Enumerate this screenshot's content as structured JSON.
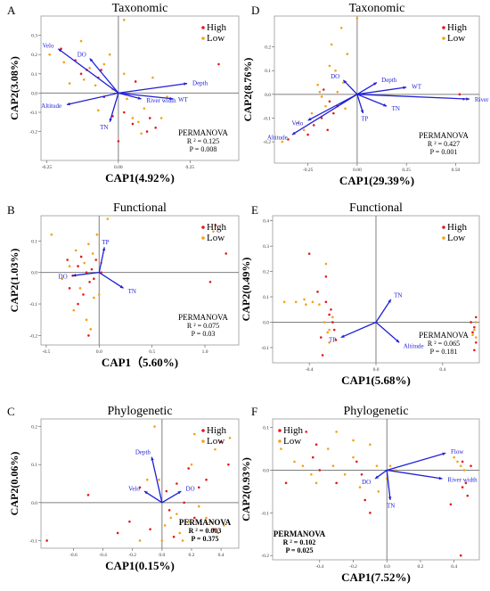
{
  "colors": {
    "high": "#e41a1c",
    "low": "#f5a01a",
    "arrow": "#1f1fd6",
    "axis": "#7f7f7f"
  },
  "chart_data": [
    {
      "panel": "A",
      "type": "scatter",
      "title": "Taxonomic",
      "xlabel": "CAP1(4.92%)",
      "ylabel": "CAP2(3.08%)",
      "xlim": [
        -0.27,
        0.42
      ],
      "ylim": [
        -0.35,
        0.4
      ],
      "xticks": [
        "-0.25",
        "0.00",
        "0.25"
      ],
      "xtick_values": [
        -0.25,
        0,
        0.25
      ],
      "yticks": [
        "-0.2",
        "-0.1",
        "0.0",
        "0.1",
        "0.2",
        "0.3"
      ],
      "ytick_values": [
        -0.2,
        -0.1,
        0,
        0.1,
        0.2,
        0.3
      ],
      "legend": [
        "High",
        "Low"
      ],
      "legend_position": "top-right",
      "stats": [
        "PERMANOVA",
        "R ² = 0.125",
        "P = 0.008"
      ],
      "arrows": [
        {
          "label": "Velo",
          "x": -0.21,
          "y": 0.23
        },
        {
          "label": "DO",
          "x": -0.1,
          "y": 0.18
        },
        {
          "label": "Depth",
          "x": 0.24,
          "y": 0.05
        },
        {
          "label": "WT",
          "x": 0.19,
          "y": -0.03
        },
        {
          "label": "River width",
          "x": 0.08,
          "y": -0.03
        },
        {
          "label": "Altitude",
          "x": -0.18,
          "y": -0.06
        },
        {
          "label": "TN",
          "x": -0.03,
          "y": -0.15
        }
      ],
      "points_high": [
        [
          -0.2,
          0.23
        ],
        [
          -0.15,
          0.17
        ],
        [
          -0.13,
          0.1
        ],
        [
          -0.11,
          0.12
        ],
        [
          -0.07,
          0.08
        ],
        [
          -0.06,
          0.12
        ],
        [
          -0.05,
          -0.02
        ],
        [
          -0.02,
          -0.12
        ],
        [
          0.02,
          -0.1
        ],
        [
          0.05,
          -0.16
        ],
        [
          0.1,
          -0.2
        ],
        [
          0.13,
          -0.18
        ],
        [
          0.11,
          -0.13
        ],
        [
          0.06,
          0.06
        ],
        [
          0.0,
          -0.25
        ],
        [
          0.35,
          0.15
        ]
      ],
      "points_low": [
        [
          -0.24,
          0.2
        ],
        [
          -0.19,
          0.16
        ],
        [
          -0.17,
          0.05
        ],
        [
          -0.12,
          0.07
        ],
        [
          -0.1,
          0.13
        ],
        [
          -0.08,
          0.04
        ],
        [
          -0.07,
          -0.09
        ],
        [
          -0.05,
          0.15
        ],
        [
          -0.02,
          0.02
        ],
        [
          0.02,
          0.1
        ],
        [
          0.03,
          -0.03
        ],
        [
          0.05,
          -0.13
        ],
        [
          0.08,
          -0.21
        ],
        [
          0.07,
          -0.15
        ],
        [
          0.12,
          0.08
        ],
        [
          0.15,
          -0.13
        ],
        [
          0.17,
          -0.02
        ],
        [
          0.02,
          0.38
        ],
        [
          -0.13,
          0.27
        ],
        [
          -0.03,
          0.2
        ],
        [
          0.09,
          -0.08
        ]
      ]
    },
    {
      "panel": "D",
      "type": "scatter",
      "title": "Taxonomic",
      "xlabel": "CAP1(29.39%)",
      "ylabel": "CAP2(8.76%)",
      "xlim": [
        -0.42,
        0.62
      ],
      "ylim": [
        -0.29,
        0.33
      ],
      "xticks": [
        "-0.25",
        "0.00",
        "0.25",
        "0.50"
      ],
      "xtick_values": [
        -0.25,
        0,
        0.25,
        0.5
      ],
      "yticks": [
        "-0.2",
        "-0.1",
        "0.0",
        "0.1",
        "0.2"
      ],
      "ytick_values": [
        -0.2,
        -0.1,
        0,
        0.1,
        0.2
      ],
      "legend": [
        "High",
        "Low"
      ],
      "legend_position": "top-right",
      "stats": [
        "PERMANOVA",
        "R ² = 0.427",
        "P = 0.001"
      ],
      "arrows": [
        {
          "label": "DO",
          "x": -0.07,
          "y": 0.06
        },
        {
          "label": "Depth",
          "x": 0.1,
          "y": 0.05
        },
        {
          "label": "WT",
          "x": 0.25,
          "y": 0.03
        },
        {
          "label": "River width",
          "x": 0.57,
          "y": -0.02
        },
        {
          "label": "TN",
          "x": 0.15,
          "y": -0.05
        },
        {
          "label": "TP",
          "x": 0.03,
          "y": -0.08
        },
        {
          "label": "Velo",
          "x": -0.25,
          "y": -0.11
        },
        {
          "label": "Altitude",
          "x": -0.33,
          "y": -0.17
        }
      ],
      "points_high": [
        [
          -0.35,
          -0.19
        ],
        [
          -0.25,
          -0.17
        ],
        [
          -0.22,
          -0.13
        ],
        [
          -0.18,
          -0.1
        ],
        [
          -0.15,
          -0.15
        ],
        [
          -0.12,
          -0.08
        ],
        [
          -0.1,
          -0.05
        ],
        [
          -0.17,
          0.02
        ],
        [
          -0.14,
          -0.03
        ],
        [
          0.52,
          0.0
        ],
        [
          0.54,
          -0.02
        ]
      ],
      "points_low": [
        [
          -0.38,
          -0.2
        ],
        [
          -0.3,
          -0.12
        ],
        [
          -0.27,
          -0.15
        ],
        [
          -0.23,
          -0.08
        ],
        [
          -0.2,
          0.04
        ],
        [
          -0.19,
          0.01
        ],
        [
          -0.16,
          -0.05
        ],
        [
          -0.11,
          0.1
        ],
        [
          -0.1,
          0.01
        ],
        [
          -0.07,
          0.05
        ],
        [
          -0.06,
          -0.06
        ],
        [
          -0.05,
          0.17
        ],
        [
          -0.14,
          0.12
        ],
        [
          -0.13,
          0.21
        ],
        [
          -0.08,
          0.28
        ],
        [
          0.0,
          0.32
        ],
        [
          -0.18,
          -0.01
        ]
      ]
    },
    {
      "panel": "B",
      "type": "scatter",
      "title": "Functional",
      "xlabel": "CAP1（5.60%)",
      "ylabel": "CAP2(1.03%)",
      "xlim": [
        -0.55,
        1.32
      ],
      "ylim": [
        -0.23,
        0.18
      ],
      "xticks": [
        "-0.5",
        "0.0",
        "0.5",
        "1.0"
      ],
      "xtick_values": [
        -0.5,
        0,
        0.5,
        1.0
      ],
      "yticks": [
        "-0.2",
        "-0.1",
        "0.0",
        "0.1"
      ],
      "ytick_values": [
        -0.2,
        -0.1,
        0,
        0.1
      ],
      "legend": [
        "High",
        "Low"
      ],
      "legend_position": "top-right",
      "stats": [
        "PERMANOVA",
        "R ² = 0.075",
        "P = 0.03"
      ],
      "arrows": [
        {
          "label": "TP",
          "x": 0.05,
          "y": 0.08
        },
        {
          "label": "DO",
          "x": -0.25,
          "y": -0.01
        },
        {
          "label": "TN",
          "x": 0.23,
          "y": -0.05
        }
      ],
      "points_high": [
        [
          -0.3,
          0.04
        ],
        [
          -0.25,
          -0.01
        ],
        [
          -0.2,
          0.02
        ],
        [
          -0.17,
          0.05
        ],
        [
          -0.12,
          0.0
        ],
        [
          -0.09,
          -0.03
        ],
        [
          -0.07,
          0.01
        ],
        [
          -0.05,
          -0.02
        ],
        [
          -0.15,
          -0.07
        ],
        [
          -0.2,
          -0.1
        ],
        [
          -0.1,
          -0.2
        ],
        [
          0.02,
          0.0
        ],
        [
          -0.03,
          0.04
        ],
        [
          1.1,
          0.15
        ],
        [
          1.05,
          -0.03
        ],
        [
          1.2,
          0.06
        ],
        [
          -0.28,
          -0.05
        ]
      ],
      "points_low": [
        [
          -0.45,
          0.12
        ],
        [
          -0.35,
          -0.02
        ],
        [
          -0.28,
          0.02
        ],
        [
          -0.22,
          0.07
        ],
        [
          -0.18,
          -0.05
        ],
        [
          -0.14,
          0.03
        ],
        [
          -0.1,
          0.09
        ],
        [
          -0.06,
          0.06
        ],
        [
          -0.05,
          -0.08
        ],
        [
          -0.02,
          0.12
        ],
        [
          0.02,
          0.03
        ],
        [
          -0.12,
          -0.15
        ],
        [
          -0.08,
          -0.18
        ],
        [
          0.0,
          -0.07
        ],
        [
          0.08,
          0.17
        ],
        [
          -0.24,
          -0.12
        ],
        [
          1.08,
          0.13
        ]
      ]
    },
    {
      "panel": "E",
      "type": "scatter",
      "title": "Functional",
      "xlabel": "CAP1(5.68%)",
      "ylabel": "CAP2(0.49%)",
      "xlim": [
        -0.62,
        0.62
      ],
      "ylim": [
        -0.16,
        0.42
      ],
      "xticks": [
        "-0.4",
        "0.0",
        "0.4"
      ],
      "xtick_values": [
        -0.4,
        0,
        0.4
      ],
      "yticks": [
        "-0.1",
        "0.0",
        "0.1",
        "0.2",
        "0.3",
        "0.4"
      ],
      "ytick_values": [
        -0.1,
        0,
        0.1,
        0.2,
        0.3,
        0.4
      ],
      "legend": [
        "High",
        "Low"
      ],
      "legend_position": "top-right",
      "stats": [
        "PERMANOVA",
        "R ² = 0.065",
        "P = 0.181"
      ],
      "arrows": [
        {
          "label": "TN",
          "x": 0.09,
          "y": 0.09
        },
        {
          "label": "TP",
          "x": -0.21,
          "y": -0.06
        },
        {
          "label": "Altitude",
          "x": 0.14,
          "y": -0.08
        }
      ],
      "points_high": [
        [
          -0.4,
          0.27
        ],
        [
          -0.35,
          0.12
        ],
        [
          -0.3,
          0.08
        ],
        [
          -0.28,
          0.03
        ],
        [
          -0.26,
          0.0
        ],
        [
          -0.27,
          0.05
        ],
        [
          -0.33,
          -0.06
        ],
        [
          -0.32,
          -0.13
        ],
        [
          -0.24,
          -0.07
        ],
        [
          0.57,
          0.0
        ],
        [
          0.59,
          -0.02
        ],
        [
          0.58,
          -0.04
        ],
        [
          0.6,
          -0.08
        ],
        [
          0.59,
          -0.11
        ],
        [
          0.6,
          0.02
        ],
        [
          -0.25,
          -0.03
        ],
        [
          -0.3,
          0.18
        ]
      ],
      "points_low": [
        [
          -0.55,
          0.08
        ],
        [
          -0.48,
          0.08
        ],
        [
          -0.43,
          0.09
        ],
        [
          -0.42,
          0.07
        ],
        [
          -0.38,
          0.08
        ],
        [
          -0.34,
          0.07
        ],
        [
          -0.31,
          0.0
        ],
        [
          -0.29,
          -0.04
        ],
        [
          -0.28,
          -0.03
        ],
        [
          -0.28,
          -0.08
        ],
        [
          -0.26,
          0.02
        ],
        [
          -0.3,
          0.23
        ],
        [
          0.58,
          -0.05
        ],
        [
          0.6,
          -0.06
        ],
        [
          0.59,
          -0.03
        ],
        [
          0.6,
          0.0
        ]
      ]
    },
    {
      "panel": "C",
      "type": "scatter",
      "title": "Phylogenetic",
      "xlabel": "CAP1(0.15%)",
      "ylabel": "CAP2(0.06%)",
      "xlim": [
        -0.82,
        0.52
      ],
      "ylim": [
        -0.12,
        0.22
      ],
      "xticks": [
        "-0.6",
        "-0.4",
        "-0.2",
        "0.0",
        "0.2",
        "0.4"
      ],
      "xtick_values": [
        -0.6,
        -0.4,
        -0.2,
        0,
        0.2,
        0.4
      ],
      "yticks": [
        "-0.1",
        "0.0",
        "0.1",
        "0.2"
      ],
      "ytick_values": [
        -0.1,
        0,
        0.1,
        0.2
      ],
      "legend": [
        "High",
        "Low"
      ],
      "legend_position": "top-right",
      "stats": [
        "PERMANOVA",
        "R ² = 0.003",
        "P = 0.375"
      ],
      "arrows": [
        {
          "label": "Depth",
          "x": -0.07,
          "y": 0.12
        },
        {
          "label": "Velo",
          "x": -0.12,
          "y": 0.03
        },
        {
          "label": "DO",
          "x": 0.13,
          "y": 0.03
        }
      ],
      "points_high": [
        [
          -0.78,
          -0.1
        ],
        [
          -0.5,
          0.02
        ],
        [
          -0.3,
          -0.08
        ],
        [
          -0.22,
          -0.05
        ],
        [
          -0.15,
          0.04
        ],
        [
          -0.08,
          -0.07
        ],
        [
          0.03,
          0.03
        ],
        [
          0.05,
          -0.02
        ],
        [
          0.1,
          0.05
        ],
        [
          0.15,
          0.0
        ],
        [
          0.18,
          0.09
        ],
        [
          0.22,
          -0.04
        ],
        [
          0.25,
          0.04
        ],
        [
          0.3,
          0.06
        ],
        [
          0.4,
          0.16
        ],
        [
          0.45,
          0.1
        ],
        [
          0.35,
          -0.07
        ],
        [
          0.08,
          -0.09
        ],
        [
          0.28,
          0.19
        ]
      ],
      "points_low": [
        [
          -0.05,
          0.2
        ],
        [
          -0.1,
          0.06
        ],
        [
          -0.02,
          0.06
        ],
        [
          0.02,
          -0.06
        ],
        [
          0.06,
          -0.04
        ],
        [
          0.1,
          -0.03
        ],
        [
          0.12,
          -0.08
        ],
        [
          0.18,
          -0.05
        ],
        [
          0.2,
          0.1
        ],
        [
          0.25,
          -0.01
        ],
        [
          0.3,
          -0.04
        ],
        [
          0.33,
          -0.05
        ],
        [
          0.38,
          -0.08
        ],
        [
          0.42,
          -0.06
        ],
        [
          0.46,
          0.17
        ],
        [
          0.22,
          0.18
        ],
        [
          0.36,
          0.14
        ],
        [
          -0.15,
          -0.1
        ],
        [
          0.0,
          -0.1
        ],
        [
          0.14,
          -0.1
        ]
      ]
    },
    {
      "panel": "F",
      "type": "scatter",
      "title": "Phylogenetic",
      "xlabel": "CAP1(7.52%)",
      "ylabel": "CAP2(0.93%)",
      "xlim": [
        -0.68,
        0.55
      ],
      "ylim": [
        -0.21,
        0.12
      ],
      "xticks": [
        "-0.4",
        "-0.2",
        "0.0",
        "0.2",
        "0.4"
      ],
      "xtick_values": [
        -0.4,
        -0.2,
        0,
        0.2,
        0.4
      ],
      "yticks": [
        "-0.2",
        "-0.1",
        "0.0",
        "0.1"
      ],
      "ytick_values": [
        -0.2,
        -0.1,
        0,
        0.1
      ],
      "legend": [
        "High",
        "Low"
      ],
      "legend_position": "top-left",
      "stats": [
        "PERMANOVA",
        "R ² = 0.102",
        "P = 0.025"
      ],
      "arrows": [
        {
          "label": "Flow",
          "x": 0.35,
          "y": 0.04
        },
        {
          "label": "River width",
          "x": 0.33,
          "y": -0.02
        },
        {
          "label": "DO",
          "x": -0.07,
          "y": -0.02
        },
        {
          "label": "TN",
          "x": 0.02,
          "y": -0.07
        }
      ],
      "points_high": [
        [
          -0.6,
          -0.03
        ],
        [
          -0.48,
          0.09
        ],
        [
          -0.44,
          0.03
        ],
        [
          -0.4,
          0.0
        ],
        [
          -0.3,
          -0.03
        ],
        [
          -0.18,
          0.02
        ],
        [
          -0.15,
          -0.01
        ],
        [
          -0.13,
          -0.07
        ],
        [
          -0.1,
          -0.1
        ],
        [
          0.38,
          -0.08
        ],
        [
          0.45,
          0.02
        ],
        [
          0.47,
          -0.03
        ],
        [
          0.48,
          -0.06
        ],
        [
          0.44,
          -0.2
        ],
        [
          0.5,
          0.01
        ],
        [
          -0.42,
          0.06
        ],
        [
          0.45,
          -0.04
        ]
      ],
      "points_low": [
        [
          -0.63,
          0.05
        ],
        [
          -0.55,
          0.02
        ],
        [
          -0.5,
          0.01
        ],
        [
          -0.42,
          -0.03
        ],
        [
          -0.35,
          0.05
        ],
        [
          -0.32,
          0.01
        ],
        [
          -0.25,
          -0.01
        ],
        [
          -0.2,
          0.03
        ],
        [
          -0.16,
          -0.04
        ],
        [
          -0.1,
          0.06
        ],
        [
          -0.06,
          0.01
        ],
        [
          0.0,
          -0.02
        ],
        [
          0.02,
          0.01
        ],
        [
          -0.05,
          -0.05
        ],
        [
          0.42,
          0.02
        ],
        [
          0.44,
          0.01
        ],
        [
          0.46,
          0.0
        ],
        [
          -0.3,
          0.09
        ],
        [
          -0.2,
          0.07
        ],
        [
          -0.45,
          -0.01
        ],
        [
          0.4,
          0.03
        ],
        [
          0.05,
          0.0
        ]
      ]
    }
  ]
}
